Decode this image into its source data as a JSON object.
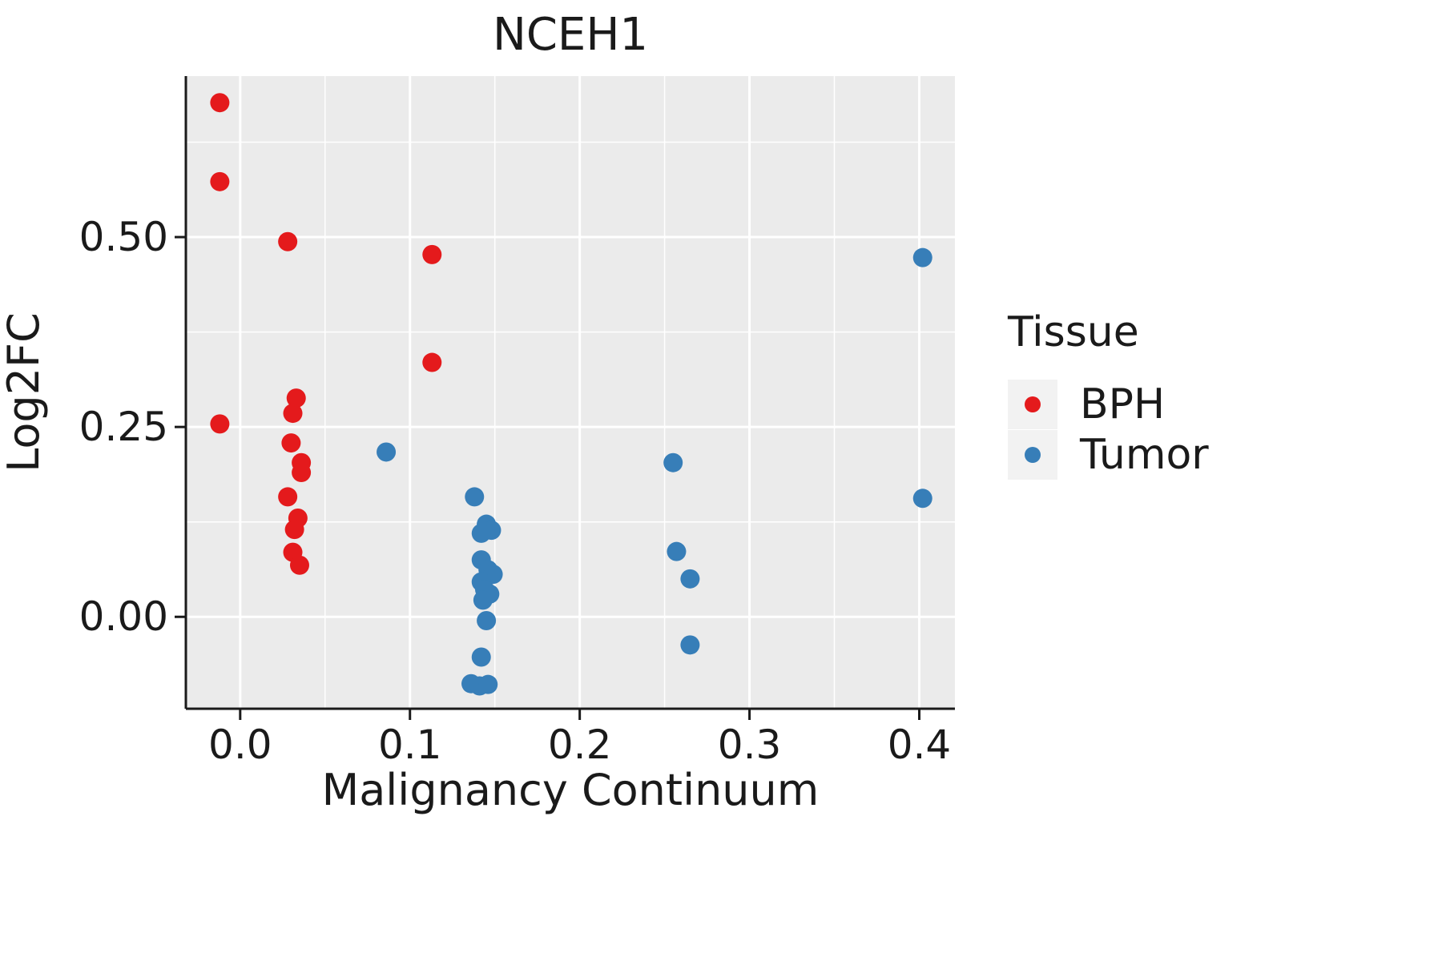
{
  "chart_data": {
    "type": "scatter",
    "title": "NCEH1",
    "xlabel": "Malignancy Continuum",
    "ylabel": "Log2FC",
    "panel_bg": "#EBEBEB",
    "grid_color": "#FFFFFF",
    "axis_color": "#1a1a1a",
    "legend_key_bg": "#F2F2F2",
    "x_domain": [
      -0.032,
      0.421
    ],
    "y_domain": [
      -0.121,
      0.712
    ],
    "x_ticks": {
      "values": [
        0.0,
        0.1,
        0.2,
        0.3,
        0.4
      ],
      "labels": [
        "0.0",
        "0.1",
        "0.2",
        "0.3",
        "0.4"
      ]
    },
    "y_ticks": {
      "values": [
        0.0,
        0.25,
        0.5
      ],
      "labels": [
        "0.00",
        "0.25",
        "0.50"
      ]
    },
    "x_minor": [
      0.05,
      0.15,
      0.25,
      0.35
    ],
    "y_minor": [
      0.125,
      0.375,
      0.625
    ],
    "legend": {
      "title": "Tissue",
      "position": "right"
    },
    "series": [
      {
        "name": "BPH",
        "color": "#E41A1C",
        "points": [
          [
            -0.012,
            0.677
          ],
          [
            -0.012,
            0.573
          ],
          [
            0.028,
            0.494
          ],
          [
            -0.012,
            0.254
          ],
          [
            0.113,
            0.477
          ],
          [
            0.113,
            0.335
          ],
          [
            0.033,
            0.288
          ],
          [
            0.031,
            0.268
          ],
          [
            0.03,
            0.229
          ],
          [
            0.036,
            0.203
          ],
          [
            0.036,
            0.19
          ],
          [
            0.028,
            0.158
          ],
          [
            0.034,
            0.13
          ],
          [
            0.032,
            0.115
          ],
          [
            0.031,
            0.085
          ],
          [
            0.035,
            0.068
          ]
        ]
      },
      {
        "name": "Tumor",
        "color": "#377EB8",
        "points": [
          [
            0.402,
            0.473
          ],
          [
            0.402,
            0.156
          ],
          [
            0.086,
            0.217
          ],
          [
            0.255,
            0.203
          ],
          [
            0.257,
            0.086
          ],
          [
            0.265,
            0.05
          ],
          [
            0.265,
            -0.037
          ],
          [
            0.138,
            0.158
          ],
          [
            0.145,
            0.122
          ],
          [
            0.148,
            0.114
          ],
          [
            0.142,
            0.11
          ],
          [
            0.142,
            0.075
          ],
          [
            0.146,
            0.062
          ],
          [
            0.149,
            0.056
          ],
          [
            0.142,
            0.046
          ],
          [
            0.144,
            0.036
          ],
          [
            0.147,
            0.03
          ],
          [
            0.143,
            0.022
          ],
          [
            0.145,
            -0.005
          ],
          [
            0.142,
            -0.053
          ],
          [
            0.136,
            -0.088
          ],
          [
            0.141,
            -0.091
          ],
          [
            0.146,
            -0.089
          ]
        ]
      }
    ]
  }
}
